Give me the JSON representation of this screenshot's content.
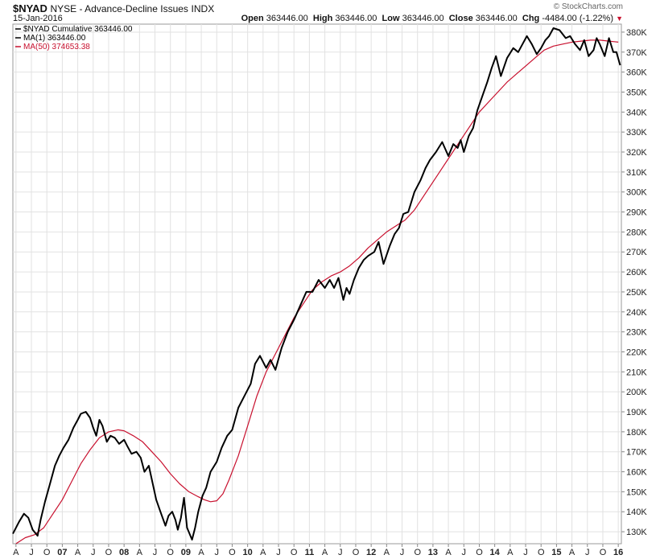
{
  "header": {
    "symbol": "$NYAD",
    "description": "NYSE - Advance-Decline Issues",
    "exchange": "INDX",
    "date": "15-Jan-2016",
    "watermark": "© StockCharts.com",
    "open_label": "Open",
    "open": "363446.00",
    "high_label": "High",
    "high": "363446.00",
    "low_label": "Low",
    "low": "363446.00",
    "close_label": "Close",
    "close": "363446.00",
    "chg_label": "Chg",
    "chg": "-4484.00 (-1.22%)"
  },
  "legend": [
    {
      "text": "$NYAD Cumulative 363446.00",
      "color": "#000000"
    },
    {
      "text": "MA(1) 363446.00",
      "color": "#000000"
    },
    {
      "text": "MA(50) 374653.38",
      "color": "#c8102e"
    }
  ],
  "chart_data": {
    "type": "line",
    "ylim": [
      124000,
      384000
    ],
    "xlim": [
      2006.2,
      2016.05
    ],
    "yticks": [
      130000,
      140000,
      150000,
      160000,
      170000,
      180000,
      190000,
      200000,
      210000,
      220000,
      230000,
      240000,
      250000,
      260000,
      270000,
      280000,
      290000,
      300000,
      310000,
      320000,
      330000,
      340000,
      350000,
      360000,
      370000,
      380000
    ],
    "ytick_labels": [
      "130K",
      "140K",
      "150K",
      "160K",
      "170K",
      "180K",
      "190K",
      "200K",
      "210K",
      "220K",
      "230K",
      "240K",
      "250K",
      "260K",
      "270K",
      "280K",
      "290K",
      "300K",
      "310K",
      "320K",
      "330K",
      "340K",
      "350K",
      "360K",
      "370K",
      "380K"
    ],
    "xticks": [
      {
        "t": 2006.25,
        "label": "A"
      },
      {
        "t": 2006.5,
        "label": "J"
      },
      {
        "t": 2006.75,
        "label": "O"
      },
      {
        "t": 2007.0,
        "label": "07"
      },
      {
        "t": 2007.25,
        "label": "A"
      },
      {
        "t": 2007.5,
        "label": "J"
      },
      {
        "t": 2007.75,
        "label": "O"
      },
      {
        "t": 2008.0,
        "label": "08"
      },
      {
        "t": 2008.25,
        "label": "A"
      },
      {
        "t": 2008.5,
        "label": "J"
      },
      {
        "t": 2008.75,
        "label": "O"
      },
      {
        "t": 2009.0,
        "label": "09"
      },
      {
        "t": 2009.25,
        "label": "A"
      },
      {
        "t": 2009.5,
        "label": "J"
      },
      {
        "t": 2009.75,
        "label": "O"
      },
      {
        "t": 2010.0,
        "label": "10"
      },
      {
        "t": 2010.25,
        "label": "A"
      },
      {
        "t": 2010.5,
        "label": "J"
      },
      {
        "t": 2010.75,
        "label": "O"
      },
      {
        "t": 2011.0,
        "label": "11"
      },
      {
        "t": 2011.25,
        "label": "A"
      },
      {
        "t": 2011.5,
        "label": "J"
      },
      {
        "t": 2011.75,
        "label": "O"
      },
      {
        "t": 2012.0,
        "label": "12"
      },
      {
        "t": 2012.25,
        "label": "A"
      },
      {
        "t": 2012.5,
        "label": "J"
      },
      {
        "t": 2012.75,
        "label": "O"
      },
      {
        "t": 2013.0,
        "label": "13"
      },
      {
        "t": 2013.25,
        "label": "A"
      },
      {
        "t": 2013.5,
        "label": "J"
      },
      {
        "t": 2013.75,
        "label": "O"
      },
      {
        "t": 2014.0,
        "label": "14"
      },
      {
        "t": 2014.25,
        "label": "A"
      },
      {
        "t": 2014.5,
        "label": "J"
      },
      {
        "t": 2014.75,
        "label": "O"
      },
      {
        "t": 2015.0,
        "label": "15"
      },
      {
        "t": 2015.25,
        "label": "A"
      },
      {
        "t": 2015.5,
        "label": "J"
      },
      {
        "t": 2015.75,
        "label": "O"
      },
      {
        "t": 2016.0,
        "label": "16"
      }
    ],
    "grid": true,
    "legend_position": "top-left",
    "series": [
      {
        "name": "$NYAD Cumulative",
        "color": "#000000",
        "x": [
          2006.2,
          2006.3,
          2006.38,
          2006.45,
          2006.52,
          2006.6,
          2006.65,
          2006.72,
          2006.8,
          2006.88,
          2006.95,
          2007.02,
          2007.1,
          2007.18,
          2007.25,
          2007.3,
          2007.38,
          2007.45,
          2007.5,
          2007.55,
          2007.6,
          2007.65,
          2007.72,
          2007.78,
          2007.85,
          2007.92,
          2008.0,
          2008.05,
          2008.12,
          2008.2,
          2008.27,
          2008.33,
          2008.4,
          2008.45,
          2008.52,
          2008.6,
          2008.67,
          2008.72,
          2008.78,
          2008.83,
          2008.87,
          2008.92,
          2008.97,
          2009.02,
          2009.1,
          2009.15,
          2009.2,
          2009.27,
          2009.33,
          2009.4,
          2009.5,
          2009.58,
          2009.67,
          2009.75,
          2009.85,
          2009.95,
          2010.05,
          2010.12,
          2010.2,
          2010.3,
          2010.37,
          2010.45,
          2010.55,
          2010.65,
          2010.75,
          2010.85,
          2010.95,
          2011.05,
          2011.15,
          2011.25,
          2011.33,
          2011.4,
          2011.47,
          2011.55,
          2011.6,
          2011.65,
          2011.72,
          2011.8,
          2011.88,
          2011.95,
          2012.05,
          2012.12,
          2012.2,
          2012.3,
          2012.38,
          2012.45,
          2012.52,
          2012.6,
          2012.7,
          2012.8,
          2012.88,
          2012.95,
          2013.05,
          2013.15,
          2013.25,
          2013.33,
          2013.4,
          2013.45,
          2013.5,
          2013.58,
          2013.65,
          2013.72,
          2013.8,
          2013.88,
          2013.95,
          2014.02,
          2014.1,
          2014.2,
          2014.3,
          2014.38,
          2014.45,
          2014.52,
          2014.6,
          2014.68,
          2014.75,
          2014.82,
          2014.88,
          2014.95,
          2015.05,
          2015.15,
          2015.22,
          2015.3,
          2015.38,
          2015.45,
          2015.52,
          2015.6,
          2015.65,
          2015.7,
          2015.78,
          2015.85,
          2015.92,
          2015.97,
          2016.03
        ],
        "y": [
          129000,
          135000,
          139000,
          137000,
          131000,
          128000,
          136000,
          145000,
          154000,
          163000,
          168000,
          172000,
          176000,
          182000,
          186000,
          189000,
          190000,
          187000,
          182000,
          178000,
          186000,
          183000,
          175000,
          178000,
          177000,
          174000,
          176000,
          173000,
          169000,
          170000,
          167000,
          160000,
          163000,
          156000,
          146000,
          139000,
          133000,
          138000,
          140000,
          136000,
          131000,
          137000,
          147000,
          132000,
          126000,
          132000,
          140000,
          148000,
          152000,
          160000,
          165000,
          172000,
          178000,
          181000,
          192000,
          198000,
          204000,
          214000,
          218000,
          212000,
          216000,
          211000,
          222000,
          230000,
          236000,
          243000,
          250000,
          250000,
          256000,
          252000,
          256000,
          252000,
          257000,
          246000,
          252000,
          249000,
          256000,
          262000,
          266000,
          268000,
          270000,
          275000,
          264000,
          273000,
          279000,
          282000,
          289000,
          290000,
          300000,
          306000,
          312000,
          316000,
          320000,
          325000,
          318000,
          324000,
          322000,
          326000,
          320000,
          328000,
          332000,
          341000,
          348000,
          355000,
          362000,
          368000,
          358000,
          367000,
          372000,
          370000,
          374000,
          378000,
          374000,
          369000,
          372000,
          376000,
          378000,
          382000,
          381000,
          377000,
          378000,
          374000,
          371000,
          376000,
          368000,
          371000,
          377000,
          374000,
          368000,
          377000,
          370000,
          370000,
          363446
        ]
      },
      {
        "name": "MA(50)",
        "color": "#c8102e",
        "x": [
          2006.25,
          2006.4,
          2006.55,
          2006.7,
          2006.85,
          2007.0,
          2007.15,
          2007.3,
          2007.45,
          2007.6,
          2007.75,
          2007.9,
          2008.0,
          2008.15,
          2008.3,
          2008.45,
          2008.6,
          2008.75,
          2008.9,
          2009.05,
          2009.2,
          2009.3,
          2009.4,
          2009.5,
          2009.6,
          2009.7,
          2009.85,
          2010.0,
          2010.15,
          2010.3,
          2010.45,
          2010.6,
          2010.75,
          2010.9,
          2011.05,
          2011.2,
          2011.35,
          2011.5,
          2011.65,
          2011.8,
          2011.95,
          2012.1,
          2012.25,
          2012.4,
          2012.55,
          2012.7,
          2012.85,
          2013.0,
          2013.15,
          2013.3,
          2013.45,
          2013.6,
          2013.75,
          2013.9,
          2014.05,
          2014.2,
          2014.35,
          2014.5,
          2014.65,
          2014.8,
          2014.95,
          2015.1,
          2015.25,
          2015.4,
          2015.55,
          2015.7,
          2015.85,
          2016.0
        ],
        "y": [
          124000,
          127000,
          128500,
          132000,
          139000,
          146000,
          155000,
          164000,
          171000,
          177000,
          180000,
          181000,
          180500,
          178000,
          175000,
          170000,
          165000,
          159000,
          154000,
          150000,
          147500,
          146000,
          145000,
          145500,
          149000,
          156000,
          168000,
          183000,
          198000,
          210000,
          219000,
          228000,
          237000,
          244000,
          251000,
          255000,
          258000,
          260000,
          263000,
          267000,
          272000,
          276000,
          280000,
          283000,
          286000,
          291000,
          298000,
          305000,
          312000,
          319000,
          326000,
          333000,
          340000,
          345000,
          350000,
          355000,
          359000,
          363000,
          367000,
          371000,
          373000,
          374000,
          375000,
          375500,
          376000,
          376000,
          375500,
          375000
        ]
      }
    ]
  }
}
